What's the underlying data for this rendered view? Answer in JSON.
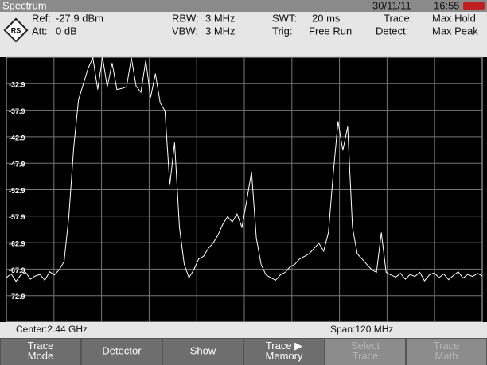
{
  "header": {
    "title": "Spectrum",
    "date": "30/11/11",
    "time": "16:55",
    "ref_label": "Ref:",
    "ref": "-27.9 dBm",
    "att_label": "Att:",
    "att": "0 dB",
    "rbw_label": "RBW:",
    "rbw": "3 MHz",
    "vbw_label": "VBW:",
    "vbw": "3 MHz",
    "swt_label": "SWT:",
    "swt": "20 ms",
    "trig_label": "Trig:",
    "trig": "Free Run",
    "trace_label": "Trace:",
    "trace": "Max Hold",
    "detect_label": "Detect:",
    "detect": "Max Peak"
  },
  "chart_data": {
    "type": "line",
    "color": "#ffffff",
    "grid": true,
    "values": [
      -69.5,
      -68.8,
      -70.2,
      -69.0,
      -68.5,
      -69.8,
      -69.2,
      -68.9,
      -70.0,
      -68.4,
      -69.0,
      -68.0,
      -66.5,
      -58,
      -45,
      -36,
      -33,
      -30,
      -28,
      -34,
      -27.9,
      -33.5,
      -29,
      -34,
      -33.8,
      -33.5,
      -28,
      -33.4,
      -34.5,
      -28.5,
      -35.5,
      -31,
      -36.5,
      -38,
      -52,
      -44,
      -60,
      -67,
      -69.5,
      -68,
      -66,
      -65.5,
      -64,
      -63,
      -61.5,
      -59.5,
      -58,
      -59,
      -57.5,
      -60,
      -55,
      -49.5,
      -62,
      -67,
      -69,
      -69.5,
      -70,
      -69,
      -68.5,
      -67.5,
      -67,
      -66,
      -65.5,
      -65,
      -64,
      -63,
      -64.5,
      -61,
      -50,
      -40,
      -45.5,
      -41,
      -60,
      -65,
      -66,
      -67,
      -68,
      -68.5,
      -61,
      -68.5,
      -69,
      -69.4,
      -68.7,
      -69.8,
      -68.9,
      -69.3,
      -68.5,
      -70.1,
      -69.0,
      -68.6,
      -69.5,
      -68.8,
      -69.9,
      -69.1,
      -68.4,
      -69.6,
      -68.9,
      -69.3,
      -68.7,
      -69.2
    ],
    "ylim": [
      -77.9,
      -27.9
    ],
    "yticks": [
      -32.9,
      -37.9,
      -42.9,
      -47.9,
      -52.9,
      -57.9,
      -62.9,
      -67.9,
      -72.9
    ],
    "center": "Center:2.44 GHz",
    "span": "Span:120 MHz"
  },
  "softkeys": [
    {
      "lines": [
        "Trace",
        "Mode"
      ],
      "enabled": true
    },
    {
      "lines": [
        "Detector"
      ],
      "enabled": true
    },
    {
      "lines": [
        "Show"
      ],
      "enabled": true
    },
    {
      "lines": [
        "Trace ▶",
        "Memory"
      ],
      "enabled": true
    },
    {
      "lines": [
        "Select",
        "Trace"
      ],
      "enabled": false
    },
    {
      "lines": [
        "Trace",
        "Math"
      ],
      "enabled": false
    }
  ]
}
